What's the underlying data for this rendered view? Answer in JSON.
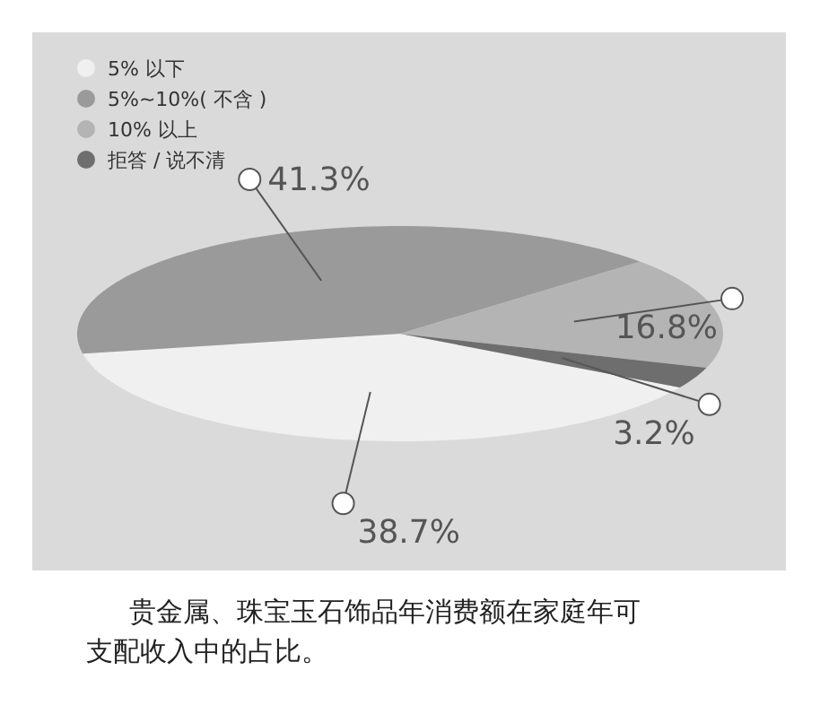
{
  "chart_data": {
    "type": "pie",
    "categories": [
      "5% 以下",
      "5%~10%( 不含 )",
      "10% 以上",
      "拒答 / 说不清"
    ],
    "values": [
      38.7,
      41.3,
      16.8,
      3.2
    ],
    "colors": [
      "#f0f0f0",
      "#9a9a9a",
      "#b4b4b4",
      "#6e6e6e"
    ],
    "value_labels": [
      "38.7%",
      "41.3%",
      "16.8%",
      "3.2%"
    ],
    "legend": "top left",
    "annotations": [
      "贵金属、珠宝玉石饰品年消费额在家庭年可支配收入中的占比。"
    ]
  }
}
